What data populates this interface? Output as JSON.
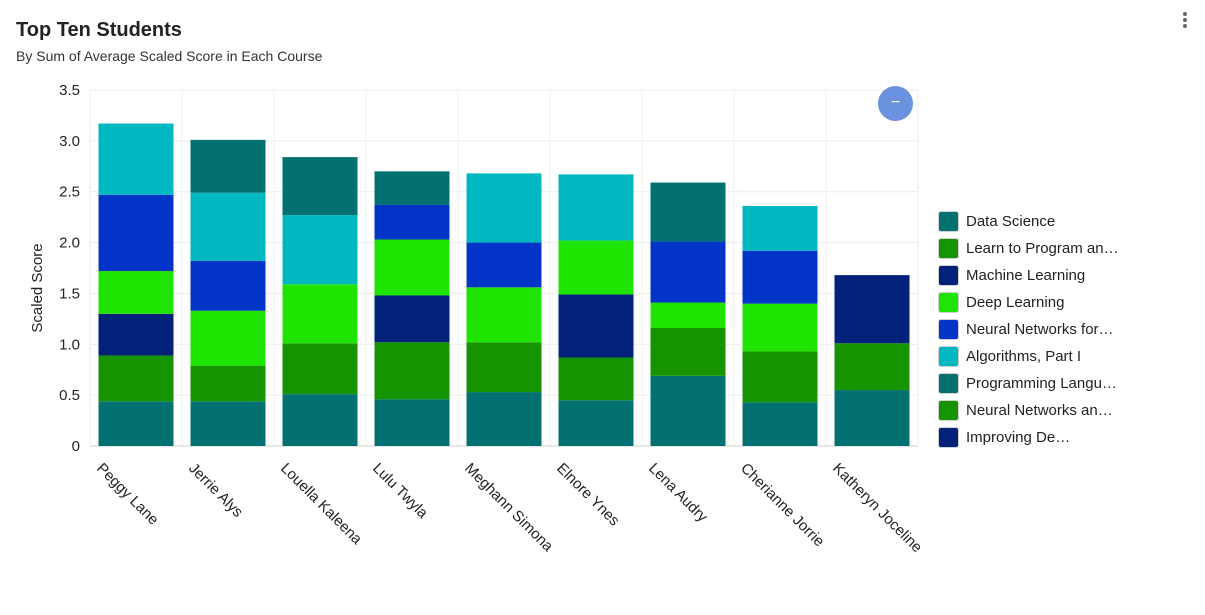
{
  "header": {
    "title": "Top Ten Students",
    "subtitle": "By Sum of Average Scaled Score in Each Course"
  },
  "controls": {
    "zoom_icon": "minus-icon",
    "zoom_symbol": "−",
    "menu_icon": "kebab-menu-icon"
  },
  "chart_data": {
    "type": "bar",
    "stacked": true,
    "title": "Top Ten Students",
    "subtitle": "By Sum of Average Scaled Score in Each Course",
    "xlabel": "",
    "ylabel": "Scaled Score",
    "ylim": [
      0,
      3.5
    ],
    "yticks": [
      0,
      0.5,
      1.0,
      1.5,
      2.0,
      2.5,
      3.0,
      3.5
    ],
    "ytick_labels": [
      "0",
      "0.5",
      "1.0",
      "1.5",
      "2.0",
      "2.5",
      "3.0",
      "3.5"
    ],
    "grid": true,
    "legend_position": "right",
    "categories": [
      "Peggy Lane",
      "Jerrie Alys",
      "Louella Kaleena",
      "Lulu Twyla",
      "Meghann Simona",
      "Elnore Ynes",
      "Lena Audry",
      "Cherianne Jorrie",
      "Katheryn Joceline"
    ],
    "series": [
      {
        "name": "Data Science",
        "color": "#037171",
        "values": [
          0.44,
          0.44,
          0.51,
          0.46,
          0.53,
          0.45,
          0.69,
          0.43,
          0.55
        ]
      },
      {
        "name": "Learn to Program an…",
        "color": "#169400",
        "values": [
          0.45,
          0.35,
          0.5,
          0.56,
          0.49,
          0.42,
          0.47,
          0.5,
          0.46
        ]
      },
      {
        "name": "Machine Learning",
        "color": "#022178",
        "values": [
          0.41,
          0,
          0,
          0.46,
          0,
          0.62,
          0,
          0,
          0.67
        ]
      },
      {
        "name": "Deep Learning",
        "color": "#1fe300",
        "values": [
          0.42,
          0.54,
          0.58,
          0.55,
          0.54,
          0.53,
          0.25,
          0.47,
          0
        ]
      },
      {
        "name": "Neural Networks for…",
        "color": "#0235c7",
        "values": [
          0.75,
          0.49,
          0,
          0.34,
          0.44,
          0,
          0.6,
          0.52,
          0
        ]
      },
      {
        "name": "Algorithms, Part I",
        "color": "#00b8c0",
        "values": [
          0.7,
          0.67,
          0.68,
          0,
          0.68,
          0.65,
          0,
          0.44,
          0
        ]
      },
      {
        "name": "Programming Langu…",
        "color": "#037171",
        "values": [
          0,
          0.52,
          0.57,
          0.33,
          0,
          0,
          0.58,
          0,
          0
        ]
      },
      {
        "name": "Neural Networks an…",
        "color": "#169400",
        "values": [
          0,
          0,
          0,
          0,
          0,
          0,
          0,
          0,
          0
        ]
      },
      {
        "name": "Improving De…",
        "color": "#022178",
        "values": [
          0,
          0,
          0,
          0,
          0,
          0,
          0,
          0,
          0
        ]
      }
    ],
    "totals": [
      3.16,
      3.0,
      2.84,
      2.7,
      2.68,
      2.66,
      2.58,
      2.36,
      1.68
    ]
  }
}
